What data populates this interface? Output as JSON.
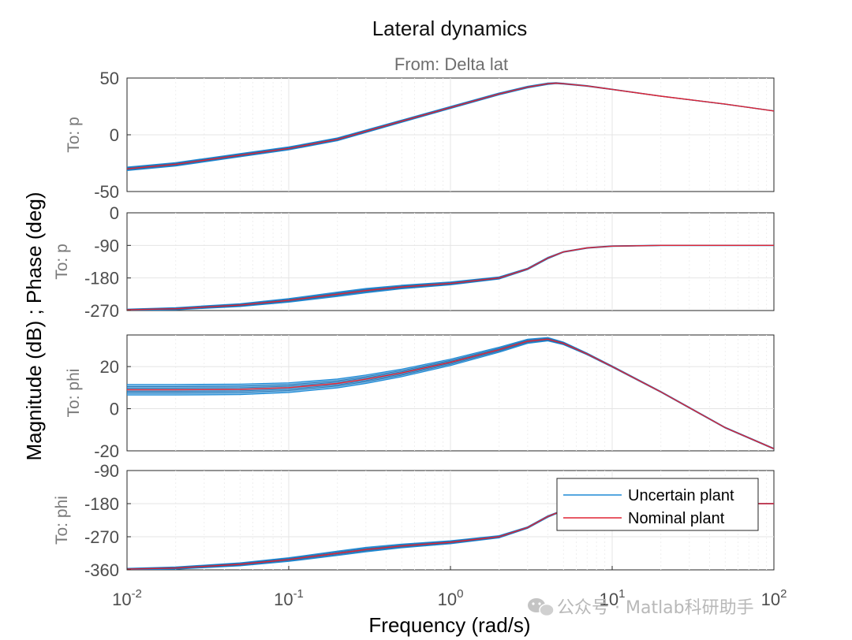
{
  "chart_data": {
    "type": "line",
    "title": "Lateral dynamics",
    "column_label": "From: Delta lat",
    "ylabel": "Magnitude (dB) ; Phase (deg)",
    "xlabel": "Frequency  (rad/s)",
    "xscale": "log",
    "xlim": [
      0.01,
      100
    ],
    "x_ticks": [
      {
        "base": "10",
        "exp": "-2"
      },
      {
        "base": "10",
        "exp": "-1"
      },
      {
        "base": "10",
        "exp": "0"
      },
      {
        "base": "10",
        "exp": "1"
      },
      {
        "base": "10",
        "exp": "2"
      }
    ],
    "grid": true,
    "legend": {
      "position": "inside-right",
      "entries": [
        "Uncertain plant",
        "Nominal plant"
      ]
    },
    "colors": {
      "uncertain": "#1f8ad6",
      "nominal": "#e02433",
      "axis": "#262626"
    },
    "panels": [
      {
        "row_label": "To: p",
        "kind": "magnitude",
        "ylim": [
          -50,
          50
        ],
        "yticks": [
          "50",
          "0",
          "-50"
        ],
        "ytick_values": [
          50,
          0,
          -50
        ],
        "series": [
          {
            "name": "Nominal plant",
            "x": [
              0.01,
              0.02,
              0.05,
              0.1,
              0.2,
              0.5,
              1,
              2,
              3,
              4,
              4.5,
              5,
              7,
              10,
              20,
              50,
              100
            ],
            "values": [
              -30,
              -26,
              -18,
              -12,
              -4,
              12,
              24,
              36,
              42,
              45,
              45.5,
              45,
              43,
              40,
              34,
              27,
              21
            ]
          }
        ],
        "uncertain_spread": [
          1.5,
          1.5,
          1.4,
          1.3,
          1.2,
          1.0,
          0.9,
          0.8,
          0.7,
          0.6,
          0.5,
          0.4,
          0.3,
          0.2,
          0.1,
          0.1,
          0.1
        ]
      },
      {
        "row_label": "To: p",
        "kind": "phase",
        "ylim": [
          -270,
          0
        ],
        "yticks": [
          "0",
          "-90",
          "-180",
          "-270"
        ],
        "ytick_values": [
          0,
          -90,
          -180,
          -270
        ],
        "series": [
          {
            "name": "Nominal plant",
            "x": [
              0.01,
              0.02,
              0.05,
              0.1,
              0.2,
              0.3,
              0.5,
              1,
              2,
              3,
              4,
              5,
              7,
              10,
              20,
              50,
              100
            ],
            "values": [
              -268,
              -265,
              -255,
              -242,
              -225,
              -215,
              -205,
              -195,
              -180,
              -155,
              -125,
              -108,
              -97,
              -92,
              -90,
              -90,
              -90
            ]
          }
        ],
        "uncertain_spread": [
          2,
          3,
          4,
          5,
          6,
          6,
          5,
          4,
          3,
          2,
          2,
          1,
          1,
          1,
          0.5,
          0.5,
          0.5
        ]
      },
      {
        "row_label": "To: phi",
        "kind": "magnitude",
        "ylim": [
          -20,
          35
        ],
        "yticks": [
          "20",
          "0",
          "-20"
        ],
        "ytick_values": [
          20,
          0,
          -20
        ],
        "series": [
          {
            "name": "Nominal plant",
            "x": [
              0.01,
              0.02,
              0.05,
              0.1,
              0.2,
              0.3,
              0.5,
              1,
              2,
              3,
              4,
              5,
              7,
              10,
              20,
              50,
              100
            ],
            "values": [
              9,
              9,
              9.2,
              10,
              12,
              14,
              17,
              22,
              28,
              32,
              33,
              31,
              26,
              20,
              8,
              -9,
              -19
            ]
          }
        ],
        "uncertain_spread": [
          2.5,
          2.5,
          2.5,
          2.3,
          2.1,
          2.0,
          1.8,
          1.5,
          1.2,
          1.0,
          0.8,
          0.6,
          0.4,
          0.3,
          0.2,
          0.2,
          0.2
        ]
      },
      {
        "row_label": "To: phi",
        "kind": "phase",
        "ylim": [
          -360,
          -90
        ],
        "yticks": [
          "-90",
          "-180",
          "-270",
          "-360"
        ],
        "ytick_values": [
          -90,
          -180,
          -270,
          -360
        ],
        "series": [
          {
            "name": "Nominal plant",
            "x": [
              0.01,
              0.02,
              0.05,
              0.1,
              0.2,
              0.3,
              0.5,
              1,
              2,
              3,
              4,
              5,
              7,
              10,
              20,
              50,
              100
            ],
            "values": [
              -358,
              -355,
              -345,
              -332,
              -315,
              -305,
              -295,
              -285,
              -270,
              -245,
              -215,
              -198,
              -187,
              -182,
              -180,
              -180,
              -180
            ]
          }
        ],
        "uncertain_spread": [
          2,
          3,
          4,
          5,
          6,
          6,
          5,
          4,
          3,
          2,
          2,
          1,
          1,
          1,
          0.5,
          0.5,
          0.5
        ]
      }
    ]
  },
  "watermark": "公众号 · Matlab科研助手"
}
